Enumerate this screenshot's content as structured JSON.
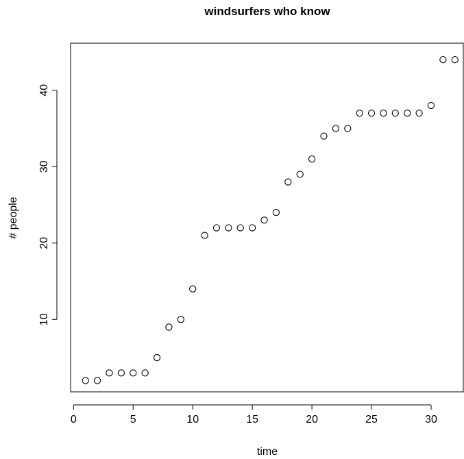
{
  "chart_data": {
    "type": "scatter",
    "title": "windsurfers who know",
    "xlabel": "time",
    "ylabel": "# people",
    "xlim": [
      0,
      32
    ],
    "ylim": [
      2,
      44
    ],
    "xticks": [
      0,
      5,
      10,
      15,
      20,
      25,
      30
    ],
    "yticks": [
      10,
      20,
      30,
      40
    ],
    "grid": false,
    "marker": "open-circle",
    "marker_color": "#000000",
    "x": [
      1,
      2,
      3,
      4,
      5,
      6,
      7,
      8,
      9,
      10,
      11,
      12,
      13,
      14,
      15,
      16,
      17,
      18,
      19,
      20,
      21,
      22,
      23,
      24,
      25,
      26,
      27,
      28,
      29,
      30,
      31,
      32
    ],
    "y": [
      2,
      2,
      3,
      3,
      3,
      3,
      5,
      9,
      10,
      14,
      21,
      22,
      22,
      22,
      22,
      23,
      24,
      28,
      29,
      31,
      34,
      35,
      35,
      37,
      37,
      37,
      37,
      37,
      37,
      38,
      44,
      44
    ]
  }
}
